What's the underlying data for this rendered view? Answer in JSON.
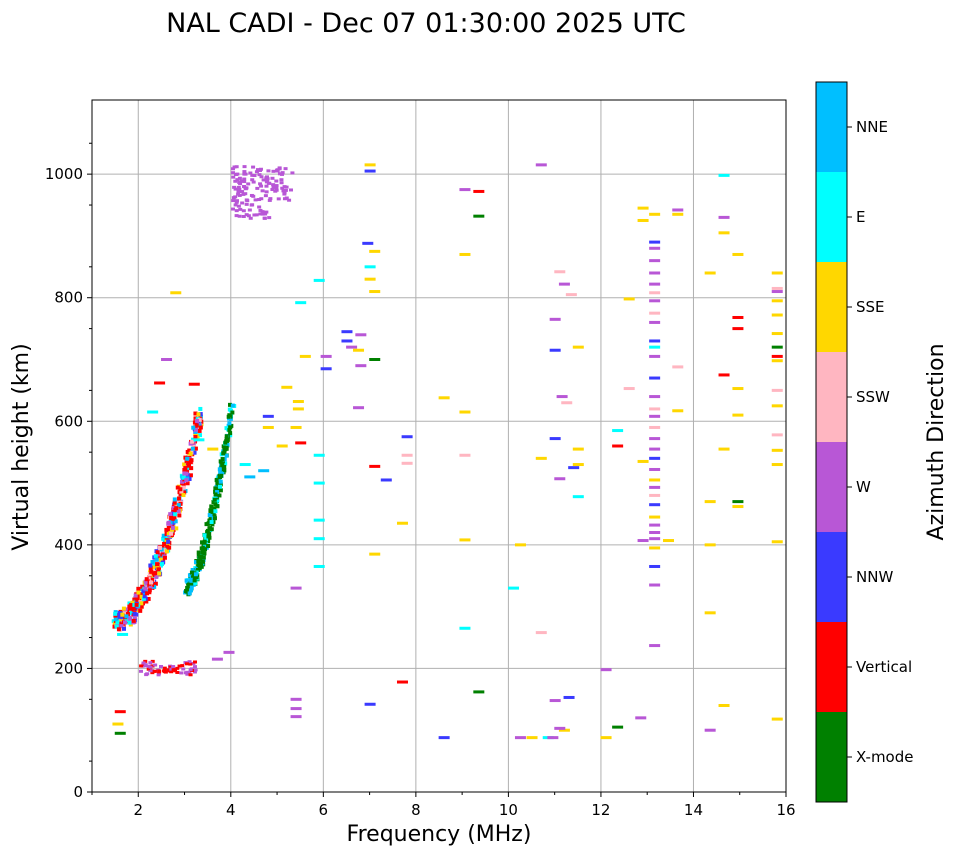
{
  "chart_data": {
    "type": "scatter",
    "title": "NAL CADI - Dec 07 01:30:00 2025 UTC",
    "xlabel": "Frequency (MHz)",
    "ylabel": "Virtual height (km)",
    "xlim": [
      1,
      16
    ],
    "ylim": [
      0,
      1120
    ],
    "xticks": [
      2,
      4,
      6,
      8,
      10,
      12,
      14,
      16
    ],
    "yticks": [
      0,
      200,
      400,
      600,
      800,
      1000
    ],
    "grid": true,
    "colorbar": {
      "label": "Azimuth Direction",
      "categories": [
        {
          "name": "X-mode",
          "color": "#008000"
        },
        {
          "name": "Vertical",
          "color": "#ff0000"
        },
        {
          "name": "NNW",
          "color": "#3a3aff"
        },
        {
          "name": "W",
          "color": "#b857d6"
        },
        {
          "name": "SSW",
          "color": "#ffb6c1"
        },
        {
          "name": "SSE",
          "color": "#ffd700"
        },
        {
          "name": "E",
          "color": "#00ffff"
        },
        {
          "name": "NNE",
          "color": "#00bfff"
        }
      ]
    },
    "traces": [
      {
        "name": "O-mode F trace",
        "category": "Vertical",
        "x0": 1.5,
        "x1": 3.3,
        "y0": 278,
        "y1": 615
      },
      {
        "name": "X-mode F trace",
        "category": "X-mode",
        "x0": 3.0,
        "x1": 4.0,
        "y0": 335,
        "y1": 630
      },
      {
        "name": "E trace",
        "category": "Vertical",
        "x0": 2.0,
        "x1": 3.2,
        "y0": 190,
        "y1": 215
      }
    ],
    "points": [
      {
        "x": 1.6,
        "y": 130,
        "c": "Vertical"
      },
      {
        "x": 1.55,
        "y": 110,
        "c": "SSE"
      },
      {
        "x": 1.6,
        "y": 95,
        "c": "X-mode"
      },
      {
        "x": 1.65,
        "y": 255,
        "c": "E"
      },
      {
        "x": 2.3,
        "y": 615,
        "c": "E"
      },
      {
        "x": 2.45,
        "y": 662,
        "c": "Vertical"
      },
      {
        "x": 2.6,
        "y": 700,
        "c": "W"
      },
      {
        "x": 2.8,
        "y": 808,
        "c": "SSE"
      },
      {
        "x": 3.2,
        "y": 660,
        "c": "Vertical"
      },
      {
        "x": 3.7,
        "y": 215,
        "c": "W"
      },
      {
        "x": 3.95,
        "y": 226,
        "c": "W"
      },
      {
        "x": 3.3,
        "y": 570,
        "c": "E"
      },
      {
        "x": 3.6,
        "y": 555,
        "c": "SSE"
      },
      {
        "x": 4.3,
        "y": 530,
        "c": "E"
      },
      {
        "x": 4.4,
        "y": 510,
        "c": "NNE"
      },
      {
        "x": 4.7,
        "y": 520,
        "c": "NNE"
      },
      {
        "x": 4.8,
        "y": 590,
        "c": "SSE"
      },
      {
        "x": 4.8,
        "y": 608,
        "c": "NNW"
      },
      {
        "x": 5.1,
        "y": 560,
        "c": "SSE"
      },
      {
        "x": 5.2,
        "y": 655,
        "c": "SSE"
      },
      {
        "x": 5.4,
        "y": 590,
        "c": "SSE"
      },
      {
        "x": 5.45,
        "y": 632,
        "c": "SSE"
      },
      {
        "x": 5.45,
        "y": 620,
        "c": "SSE"
      },
      {
        "x": 5.4,
        "y": 330,
        "c": "W"
      },
      {
        "x": 5.4,
        "y": 150,
        "c": "W"
      },
      {
        "x": 5.4,
        "y": 135,
        "c": "W"
      },
      {
        "x": 5.4,
        "y": 122,
        "c": "W"
      },
      {
        "x": 5.5,
        "y": 565,
        "c": "Vertical"
      },
      {
        "x": 5.6,
        "y": 705,
        "c": "SSE"
      },
      {
        "x": 5.9,
        "y": 545,
        "c": "E"
      },
      {
        "x": 5.9,
        "y": 500,
        "c": "E"
      },
      {
        "x": 5.9,
        "y": 440,
        "c": "E"
      },
      {
        "x": 5.9,
        "y": 410,
        "c": "E"
      },
      {
        "x": 5.9,
        "y": 365,
        "c": "E"
      },
      {
        "x": 5.9,
        "y": 828,
        "c": "E"
      },
      {
        "x": 5.5,
        "y": 792,
        "c": "E"
      },
      {
        "x": 6.05,
        "y": 705,
        "c": "W"
      },
      {
        "x": 6.05,
        "y": 685,
        "c": "NNW"
      },
      {
        "x": 6.5,
        "y": 745,
        "c": "NNW"
      },
      {
        "x": 6.5,
        "y": 730,
        "c": "NNW"
      },
      {
        "x": 6.6,
        "y": 720,
        "c": "W"
      },
      {
        "x": 6.75,
        "y": 715,
        "c": "SSE"
      },
      {
        "x": 6.8,
        "y": 740,
        "c": "W"
      },
      {
        "x": 6.8,
        "y": 690,
        "c": "W"
      },
      {
        "x": 6.75,
        "y": 622,
        "c": "W"
      },
      {
        "x": 6.95,
        "y": 888,
        "c": "NNW"
      },
      {
        "x": 7.0,
        "y": 850,
        "c": "E"
      },
      {
        "x": 7.0,
        "y": 830,
        "c": "SSE"
      },
      {
        "x": 7.1,
        "y": 875,
        "c": "SSE"
      },
      {
        "x": 7.1,
        "y": 810,
        "c": "SSE"
      },
      {
        "x": 7.1,
        "y": 700,
        "c": "X-mode"
      },
      {
        "x": 7.1,
        "y": 527,
        "c": "Vertical"
      },
      {
        "x": 7.1,
        "y": 385,
        "c": "SSE"
      },
      {
        "x": 7.0,
        "y": 1015,
        "c": "SSE"
      },
      {
        "x": 7.0,
        "y": 1005,
        "c": "NNW"
      },
      {
        "x": 7.35,
        "y": 505,
        "c": "NNW"
      },
      {
        "x": 7.7,
        "y": 435,
        "c": "SSE"
      },
      {
        "x": 7.7,
        "y": 178,
        "c": "Vertical"
      },
      {
        "x": 7.0,
        "y": 142,
        "c": "NNW"
      },
      {
        "x": 7.8,
        "y": 575,
        "c": "NNW"
      },
      {
        "x": 7.8,
        "y": 545,
        "c": "SSW"
      },
      {
        "x": 7.8,
        "y": 532,
        "c": "SSW"
      },
      {
        "x": 8.6,
        "y": 638,
        "c": "SSE"
      },
      {
        "x": 8.6,
        "y": 88,
        "c": "NNW"
      },
      {
        "x": 9.05,
        "y": 975,
        "c": "W"
      },
      {
        "x": 9.05,
        "y": 870,
        "c": "SSE"
      },
      {
        "x": 9.05,
        "y": 615,
        "c": "SSE"
      },
      {
        "x": 9.05,
        "y": 545,
        "c": "SSW"
      },
      {
        "x": 9.05,
        "y": 408,
        "c": "SSE"
      },
      {
        "x": 9.05,
        "y": 265,
        "c": "E"
      },
      {
        "x": 9.35,
        "y": 972,
        "c": "Vertical"
      },
      {
        "x": 9.35,
        "y": 932,
        "c": "X-mode"
      },
      {
        "x": 9.35,
        "y": 162,
        "c": "X-mode"
      },
      {
        "x": 10.1,
        "y": 330,
        "c": "E"
      },
      {
        "x": 10.25,
        "y": 400,
        "c": "SSE"
      },
      {
        "x": 10.25,
        "y": 88,
        "c": "W"
      },
      {
        "x": 10.5,
        "y": 88,
        "c": "SSE"
      },
      {
        "x": 10.7,
        "y": 1015,
        "c": "W"
      },
      {
        "x": 10.7,
        "y": 540,
        "c": "SSE"
      },
      {
        "x": 10.7,
        "y": 258,
        "c": "SSW"
      },
      {
        "x": 10.85,
        "y": 88,
        "c": "E"
      },
      {
        "x": 10.95,
        "y": 88,
        "c": "W"
      },
      {
        "x": 11.0,
        "y": 765,
        "c": "W"
      },
      {
        "x": 11.0,
        "y": 715,
        "c": "NNW"
      },
      {
        "x": 11.0,
        "y": 572,
        "c": "NNW"
      },
      {
        "x": 11.0,
        "y": 148,
        "c": "W"
      },
      {
        "x": 11.1,
        "y": 842,
        "c": "SSW"
      },
      {
        "x": 11.15,
        "y": 640,
        "c": "W"
      },
      {
        "x": 11.2,
        "y": 822,
        "c": "W"
      },
      {
        "x": 11.25,
        "y": 630,
        "c": "SSW"
      },
      {
        "x": 11.1,
        "y": 507,
        "c": "W"
      },
      {
        "x": 11.3,
        "y": 153,
        "c": "NNW"
      },
      {
        "x": 11.2,
        "y": 100,
        "c": "SSE"
      },
      {
        "x": 11.1,
        "y": 103,
        "c": "W"
      },
      {
        "x": 11.35,
        "y": 805,
        "c": "SSW"
      },
      {
        "x": 11.4,
        "y": 525,
        "c": "NNW"
      },
      {
        "x": 11.5,
        "y": 720,
        "c": "SSE"
      },
      {
        "x": 11.5,
        "y": 555,
        "c": "SSE"
      },
      {
        "x": 11.5,
        "y": 530,
        "c": "SSE"
      },
      {
        "x": 11.5,
        "y": 478,
        "c": "E"
      },
      {
        "x": 12.1,
        "y": 198,
        "c": "W"
      },
      {
        "x": 12.1,
        "y": 88,
        "c": "SSE"
      },
      {
        "x": 12.35,
        "y": 585,
        "c": "E"
      },
      {
        "x": 12.35,
        "y": 560,
        "c": "Vertical"
      },
      {
        "x": 12.35,
        "y": 105,
        "c": "X-mode"
      },
      {
        "x": 12.6,
        "y": 798,
        "c": "SSE"
      },
      {
        "x": 12.6,
        "y": 653,
        "c": "SSW"
      },
      {
        "x": 12.9,
        "y": 945,
        "c": "SSE"
      },
      {
        "x": 12.9,
        "y": 925,
        "c": "SSE"
      },
      {
        "x": 12.9,
        "y": 535,
        "c": "SSE"
      },
      {
        "x": 12.9,
        "y": 407,
        "c": "W"
      },
      {
        "x": 12.85,
        "y": 120,
        "c": "W"
      },
      {
        "x": 13.15,
        "y": 935,
        "c": "SSE"
      },
      {
        "x": 13.15,
        "y": 890,
        "c": "NNW"
      },
      {
        "x": 13.15,
        "y": 880,
        "c": "W"
      },
      {
        "x": 13.15,
        "y": 860,
        "c": "W"
      },
      {
        "x": 13.15,
        "y": 840,
        "c": "W"
      },
      {
        "x": 13.15,
        "y": 822,
        "c": "W"
      },
      {
        "x": 13.15,
        "y": 808,
        "c": "SSW"
      },
      {
        "x": 13.15,
        "y": 795,
        "c": "W"
      },
      {
        "x": 13.15,
        "y": 775,
        "c": "SSW"
      },
      {
        "x": 13.15,
        "y": 760,
        "c": "W"
      },
      {
        "x": 13.15,
        "y": 730,
        "c": "NNW"
      },
      {
        "x": 13.15,
        "y": 720,
        "c": "E"
      },
      {
        "x": 13.15,
        "y": 705,
        "c": "W"
      },
      {
        "x": 13.15,
        "y": 670,
        "c": "NNW"
      },
      {
        "x": 13.15,
        "y": 640,
        "c": "W"
      },
      {
        "x": 13.15,
        "y": 620,
        "c": "SSW"
      },
      {
        "x": 13.15,
        "y": 608,
        "c": "W"
      },
      {
        "x": 13.15,
        "y": 590,
        "c": "SSW"
      },
      {
        "x": 13.15,
        "y": 572,
        "c": "W"
      },
      {
        "x": 13.15,
        "y": 555,
        "c": "W"
      },
      {
        "x": 13.15,
        "y": 540,
        "c": "NNW"
      },
      {
        "x": 13.15,
        "y": 522,
        "c": "W"
      },
      {
        "x": 13.15,
        "y": 505,
        "c": "SSE"
      },
      {
        "x": 13.15,
        "y": 493,
        "c": "W"
      },
      {
        "x": 13.15,
        "y": 480,
        "c": "SSW"
      },
      {
        "x": 13.15,
        "y": 465,
        "c": "NNW"
      },
      {
        "x": 13.15,
        "y": 445,
        "c": "SSE"
      },
      {
        "x": 13.15,
        "y": 432,
        "c": "W"
      },
      {
        "x": 13.15,
        "y": 420,
        "c": "W"
      },
      {
        "x": 13.15,
        "y": 410,
        "c": "W"
      },
      {
        "x": 13.15,
        "y": 395,
        "c": "SSE"
      },
      {
        "x": 13.15,
        "y": 365,
        "c": "NNW"
      },
      {
        "x": 13.15,
        "y": 335,
        "c": "W"
      },
      {
        "x": 13.15,
        "y": 237,
        "c": "W"
      },
      {
        "x": 13.45,
        "y": 407,
        "c": "SSE"
      },
      {
        "x": 13.65,
        "y": 942,
        "c": "W"
      },
      {
        "x": 13.65,
        "y": 935,
        "c": "SSE"
      },
      {
        "x": 13.65,
        "y": 688,
        "c": "SSW"
      },
      {
        "x": 13.65,
        "y": 617,
        "c": "SSE"
      },
      {
        "x": 14.35,
        "y": 840,
        "c": "SSE"
      },
      {
        "x": 14.35,
        "y": 470,
        "c": "SSE"
      },
      {
        "x": 14.35,
        "y": 400,
        "c": "SSE"
      },
      {
        "x": 14.35,
        "y": 290,
        "c": "SSE"
      },
      {
        "x": 14.35,
        "y": 100,
        "c": "W"
      },
      {
        "x": 14.65,
        "y": 998,
        "c": "E"
      },
      {
        "x": 14.65,
        "y": 930,
        "c": "W"
      },
      {
        "x": 14.65,
        "y": 905,
        "c": "SSE"
      },
      {
        "x": 14.65,
        "y": 675,
        "c": "Vertical"
      },
      {
        "x": 14.65,
        "y": 555,
        "c": "SSE"
      },
      {
        "x": 14.65,
        "y": 140,
        "c": "SSE"
      },
      {
        "x": 14.95,
        "y": 870,
        "c": "SSE"
      },
      {
        "x": 14.95,
        "y": 768,
        "c": "Vertical"
      },
      {
        "x": 14.95,
        "y": 750,
        "c": "Vertical"
      },
      {
        "x": 14.95,
        "y": 653,
        "c": "SSE"
      },
      {
        "x": 14.95,
        "y": 610,
        "c": "SSE"
      },
      {
        "x": 14.95,
        "y": 470,
        "c": "X-mode"
      },
      {
        "x": 14.95,
        "y": 462,
        "c": "SSE"
      },
      {
        "x": 15.8,
        "y": 840,
        "c": "SSE"
      },
      {
        "x": 15.8,
        "y": 815,
        "c": "SSW"
      },
      {
        "x": 15.8,
        "y": 810,
        "c": "W"
      },
      {
        "x": 15.8,
        "y": 795,
        "c": "SSE"
      },
      {
        "x": 15.8,
        "y": 772,
        "c": "SSE"
      },
      {
        "x": 15.8,
        "y": 742,
        "c": "SSE"
      },
      {
        "x": 15.8,
        "y": 720,
        "c": "X-mode"
      },
      {
        "x": 15.8,
        "y": 705,
        "c": "Vertical"
      },
      {
        "x": 15.8,
        "y": 698,
        "c": "SSE"
      },
      {
        "x": 15.8,
        "y": 650,
        "c": "SSW"
      },
      {
        "x": 15.8,
        "y": 625,
        "c": "SSE"
      },
      {
        "x": 15.8,
        "y": 578,
        "c": "SSW"
      },
      {
        "x": 15.8,
        "y": 553,
        "c": "SSE"
      },
      {
        "x": 15.8,
        "y": 530,
        "c": "SSE"
      },
      {
        "x": 15.8,
        "y": 405,
        "c": "SSE"
      },
      {
        "x": 15.8,
        "y": 118,
        "c": "SSE"
      }
    ],
    "clusters": [
      {
        "name": "upper W blob",
        "category": "W",
        "x0": 4.0,
        "x1": 5.3,
        "y0": 930,
        "y1": 1015
      }
    ]
  }
}
